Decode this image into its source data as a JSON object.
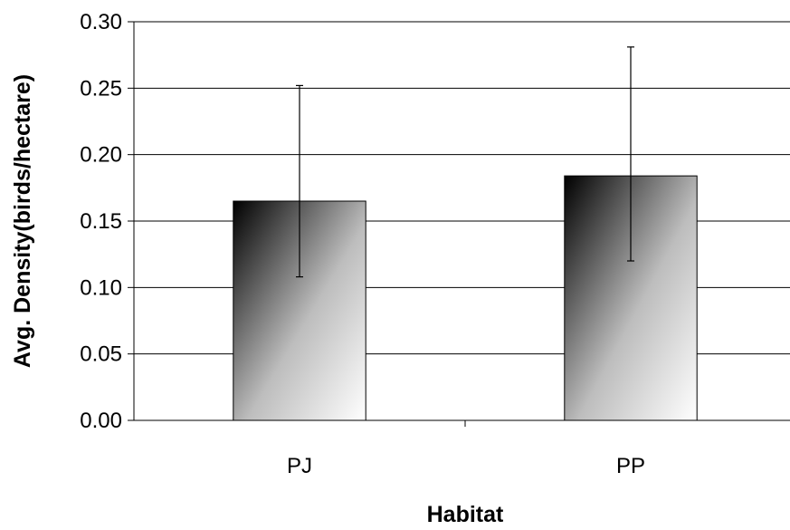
{
  "chart_data": {
    "type": "bar",
    "title": "",
    "xlabel": "Habitat",
    "ylabel": "Avg. Density(birds/hectare)",
    "categories": [
      "PJ",
      "PP"
    ],
    "values": [
      0.165,
      0.184
    ],
    "error_bars": [
      {
        "low": 0.108,
        "high": 0.252
      },
      {
        "low": 0.12,
        "high": 0.281
      }
    ],
    "ylim": [
      0,
      0.3
    ],
    "yticks": [
      "0.00",
      "0.05",
      "0.10",
      "0.15",
      "0.20",
      "0.25",
      "0.30"
    ],
    "grid": true,
    "bar_fill": "gradient dark-to-white (diagonal)"
  }
}
